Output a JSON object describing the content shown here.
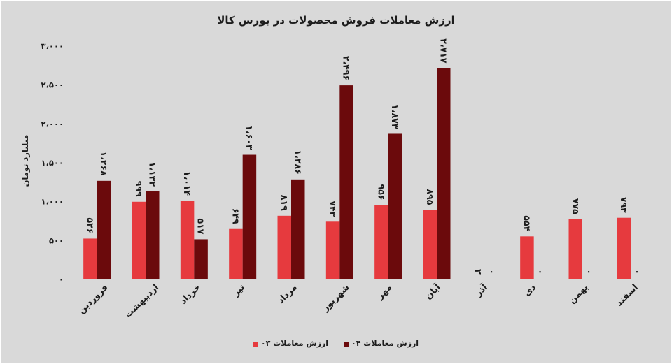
{
  "chart_data": {
    "type": "bar",
    "title": "ارزش معاملات فروش محصولات در بورس کالا",
    "xlabel": "",
    "ylabel": "میلیارد تومان",
    "ylim": [
      0,
      3000
    ],
    "yticks": [
      0,
      500,
      1000,
      1500,
      2000,
      2500,
      3000
    ],
    "ytick_labels": [
      "۰",
      "۵۰۰",
      "۱،۰۰۰",
      "۱،۵۰۰",
      "۲،۰۰۰",
      "۲،۵۰۰",
      "۳،۰۰۰"
    ],
    "categories": [
      "فروردین",
      "اردیبهشت",
      "خرداد",
      "تیر",
      "مرداد",
      "شهریور",
      "مهر",
      "آبان",
      "آذر",
      "دی",
      "بهمن",
      "اسفند"
    ],
    "series": [
      {
        "name": "ارزش معاملات ۰۳",
        "color": "#e63a3e",
        "values": [
          526,
          999,
          1014,
          649,
          819,
          743,
          956,
          895,
          2,
          554,
          775,
          793
        ],
        "labels": [
          "۵۲۶",
          "۹۹۹",
          "۱،۰۱۴",
          "۶۴۹",
          "۸۱۹",
          "۷۴۳",
          "۹۵۶",
          "۸۹۵",
          "۲",
          "۵۵۴",
          "۷۷۵",
          "۷۹۳"
        ]
      },
      {
        "name": "ارزش معاملات ۰۴",
        "color": "#6b0a0c",
        "values": [
          1268,
          1133,
          517,
          1603,
          1286,
          2496,
          1873,
          2717,
          0,
          0,
          0,
          0
        ],
        "labels": [
          "۱،۲۶۸",
          "۱،۱۳۳",
          "۵۱۷",
          "۱،۶۰۳",
          "۱،۲۸۶",
          "۲،۴۹۶",
          "۱،۸۷۳",
          "۲،۷۱۷",
          "۰",
          "۰",
          "۰",
          "۰"
        ]
      }
    ],
    "grid": false,
    "legend_position": "bottom",
    "background_color": "#d9d9d9"
  }
}
